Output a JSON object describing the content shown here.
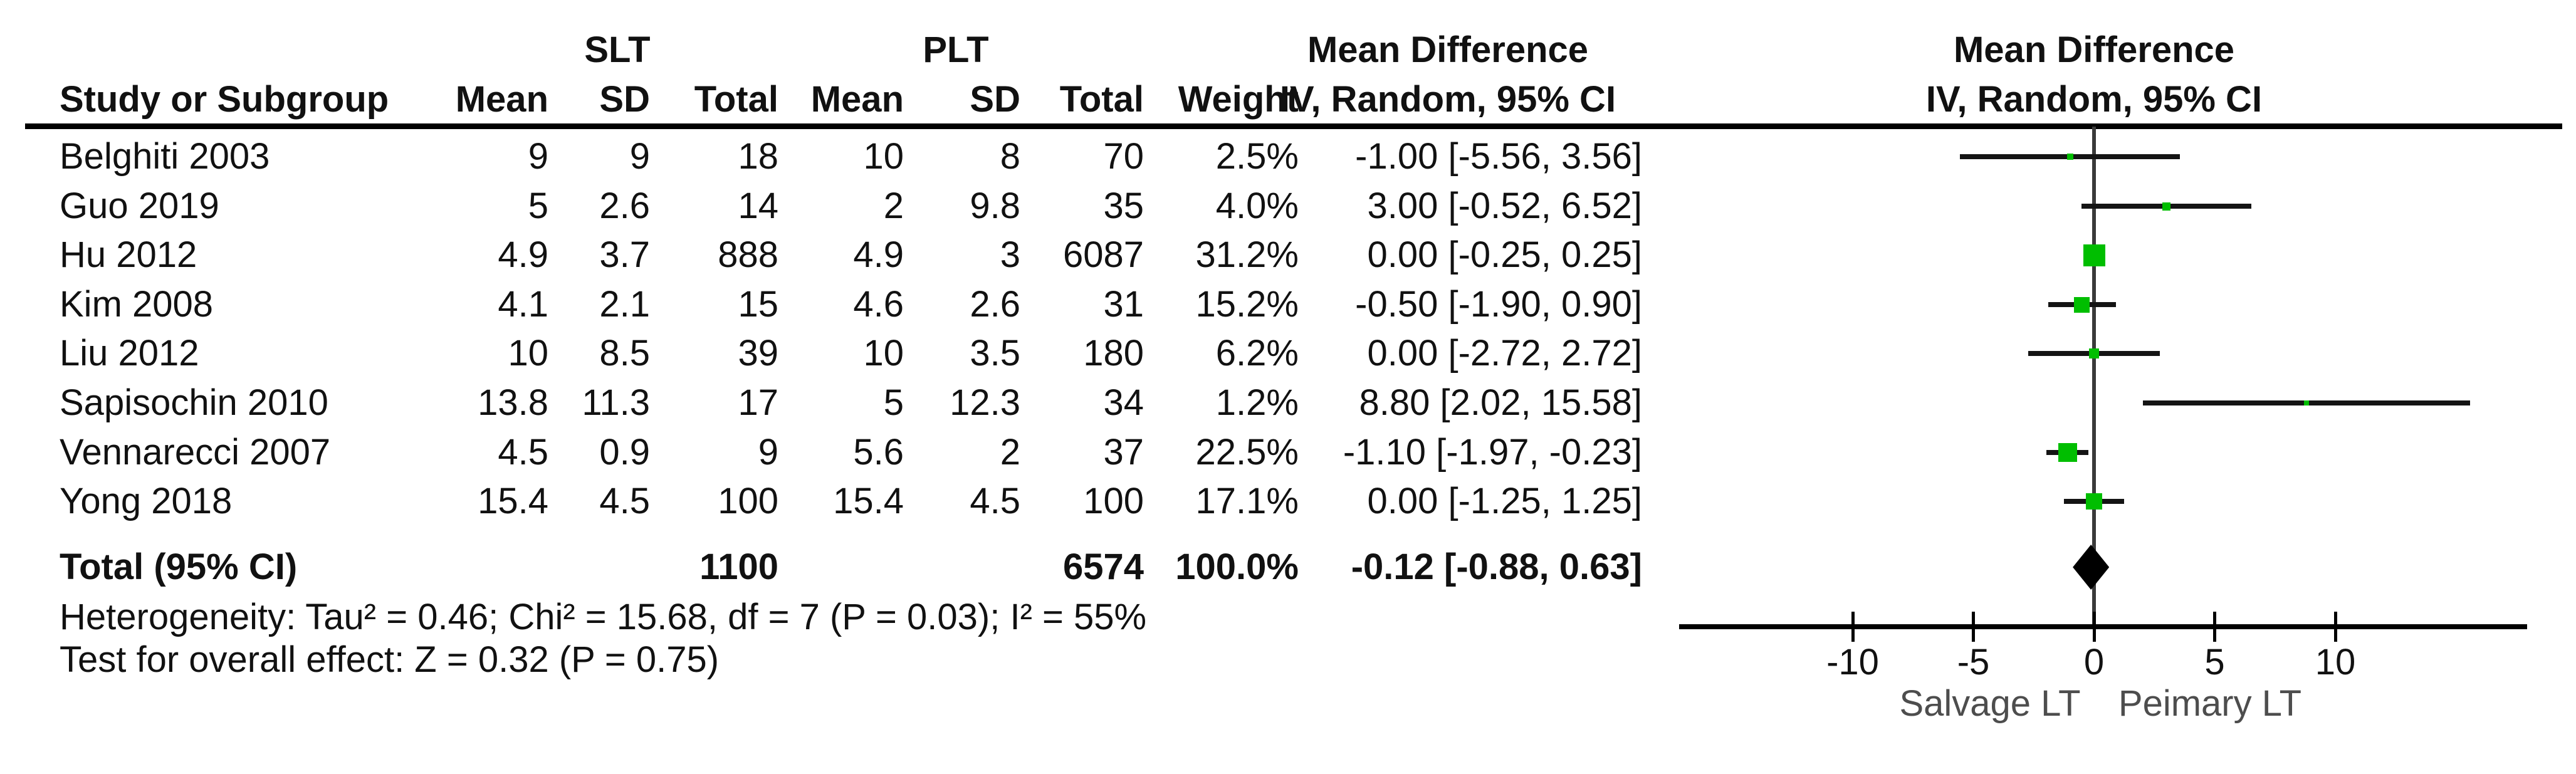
{
  "table": {
    "group_headers": {
      "slt": "SLT",
      "plt": "PLT",
      "md": "Mean Difference"
    },
    "col_headers": {
      "study": "Study or Subgroup",
      "mean": "Mean",
      "sd": "SD",
      "total": "Total",
      "weight": "Weight",
      "ci": "IV, Random, 95% CI"
    },
    "rows": [
      {
        "study": "Belghiti 2003",
        "slt_mean": "9",
        "slt_sd": "9",
        "slt_total": "18",
        "plt_mean": "10",
        "plt_sd": "8",
        "plt_total": "70",
        "weight": "2.5%",
        "ci": "-1.00 [-5.56, 3.56]"
      },
      {
        "study": "Guo 2019",
        "slt_mean": "5",
        "slt_sd": "2.6",
        "slt_total": "14",
        "plt_mean": "2",
        "plt_sd": "9.8",
        "plt_total": "35",
        "weight": "4.0%",
        "ci": "3.00 [-0.52, 6.52]"
      },
      {
        "study": "Hu 2012",
        "slt_mean": "4.9",
        "slt_sd": "3.7",
        "slt_total": "888",
        "plt_mean": "4.9",
        "plt_sd": "3",
        "plt_total": "6087",
        "weight": "31.2%",
        "ci": "0.00 [-0.25, 0.25]"
      },
      {
        "study": "Kim 2008",
        "slt_mean": "4.1",
        "slt_sd": "2.1",
        "slt_total": "15",
        "plt_mean": "4.6",
        "plt_sd": "2.6",
        "plt_total": "31",
        "weight": "15.2%",
        "ci": "-0.50 [-1.90, 0.90]"
      },
      {
        "study": "Liu 2012",
        "slt_mean": "10",
        "slt_sd": "8.5",
        "slt_total": "39",
        "plt_mean": "10",
        "plt_sd": "3.5",
        "plt_total": "180",
        "weight": "6.2%",
        "ci": "0.00 [-2.72, 2.72]"
      },
      {
        "study": "Sapisochin 2010",
        "slt_mean": "13.8",
        "slt_sd": "11.3",
        "slt_total": "17",
        "plt_mean": "5",
        "plt_sd": "12.3",
        "plt_total": "34",
        "weight": "1.2%",
        "ci": "8.80 [2.02, 15.58]"
      },
      {
        "study": "Vennarecci 2007",
        "slt_mean": "4.5",
        "slt_sd": "0.9",
        "slt_total": "9",
        "plt_mean": "5.6",
        "plt_sd": "2",
        "plt_total": "37",
        "weight": "22.5%",
        "ci": "-1.10 [-1.97, -0.23]"
      },
      {
        "study": "Yong 2018",
        "slt_mean": "15.4",
        "slt_sd": "4.5",
        "slt_total": "100",
        "plt_mean": "15.4",
        "plt_sd": "4.5",
        "plt_total": "100",
        "weight": "17.1%",
        "ci": "0.00 [-1.25, 1.25]"
      }
    ],
    "total_row": {
      "label": "Total (95% CI)",
      "slt_total": "1100",
      "plt_total": "6574",
      "weight": "100.0%",
      "ci": "-0.12 [-0.88, 0.63]"
    },
    "heterogeneity": "Heterogeneity: Tau² = 0.46; Chi² = 15.68, df = 7 (P = 0.03); I² = 55%",
    "overall_effect": "Test for overall effect: Z = 0.32 (P = 0.75)"
  },
  "plot": {
    "header_line1": "Mean Difference",
    "header_line2": "IV, Random, 95% CI",
    "axis_label_left": "Salvage LT",
    "axis_label_right": "Peimary LT",
    "marker_color": "#00BE00",
    "ticks": [
      {
        "v": -10,
        "label": "-10"
      },
      {
        "v": -5,
        "label": "-5"
      },
      {
        "v": 0,
        "label": "0"
      },
      {
        "v": 5,
        "label": "5"
      },
      {
        "v": 10,
        "label": "10"
      }
    ]
  },
  "chart_data": {
    "type": "forest",
    "effect_measure": "Mean Difference (IV, Random, 95% CI)",
    "title": "Mean Difference",
    "xlabel_left": "Salvage LT",
    "xlabel_right": "Peimary LT",
    "x_ticks": [
      -10,
      -5,
      0,
      5,
      10
    ],
    "x_range": [
      -17.2,
      17.9
    ],
    "zero_line": 0,
    "studies": [
      {
        "name": "Belghiti 2003",
        "slt": {
          "mean": 9,
          "sd": 9,
          "total": 18
        },
        "plt": {
          "mean": 10,
          "sd": 8,
          "total": 70
        },
        "weight_pct": 2.5,
        "md": -1.0,
        "ci_low": -5.56,
        "ci_high": 3.56
      },
      {
        "name": "Guo 2019",
        "slt": {
          "mean": 5,
          "sd": 2.6,
          "total": 14
        },
        "plt": {
          "mean": 2,
          "sd": 9.8,
          "total": 35
        },
        "weight_pct": 4.0,
        "md": 3.0,
        "ci_low": -0.52,
        "ci_high": 6.52
      },
      {
        "name": "Hu 2012",
        "slt": {
          "mean": 4.9,
          "sd": 3.7,
          "total": 888
        },
        "plt": {
          "mean": 4.9,
          "sd": 3,
          "total": 6087
        },
        "weight_pct": 31.2,
        "md": 0.0,
        "ci_low": -0.25,
        "ci_high": 0.25
      },
      {
        "name": "Kim 2008",
        "slt": {
          "mean": 4.1,
          "sd": 2.1,
          "total": 15
        },
        "plt": {
          "mean": 4.6,
          "sd": 2.6,
          "total": 31
        },
        "weight_pct": 15.2,
        "md": -0.5,
        "ci_low": -1.9,
        "ci_high": 0.9
      },
      {
        "name": "Liu 2012",
        "slt": {
          "mean": 10,
          "sd": 8.5,
          "total": 39
        },
        "plt": {
          "mean": 10,
          "sd": 3.5,
          "total": 180
        },
        "weight_pct": 6.2,
        "md": 0.0,
        "ci_low": -2.72,
        "ci_high": 2.72
      },
      {
        "name": "Sapisochin 2010",
        "slt": {
          "mean": 13.8,
          "sd": 11.3,
          "total": 17
        },
        "plt": {
          "mean": 5,
          "sd": 12.3,
          "total": 34
        },
        "weight_pct": 1.2,
        "md": 8.8,
        "ci_low": 2.02,
        "ci_high": 15.58
      },
      {
        "name": "Vennarecci 2007",
        "slt": {
          "mean": 4.5,
          "sd": 0.9,
          "total": 9
        },
        "plt": {
          "mean": 5.6,
          "sd": 2,
          "total": 37
        },
        "weight_pct": 22.5,
        "md": -1.1,
        "ci_low": -1.97,
        "ci_high": -0.23
      },
      {
        "name": "Yong 2018",
        "slt": {
          "mean": 15.4,
          "sd": 4.5,
          "total": 100
        },
        "plt": {
          "mean": 15.4,
          "sd": 4.5,
          "total": 100
        },
        "weight_pct": 17.1,
        "md": 0.0,
        "ci_low": -1.25,
        "ci_high": 1.25
      }
    ],
    "total": {
      "label": "Total (95% CI)",
      "slt_total": 1100,
      "plt_total": 6574,
      "weight_pct": 100.0,
      "md": -0.12,
      "ci_low": -0.88,
      "ci_high": 0.63
    },
    "heterogeneity": {
      "tau2": 0.46,
      "chi2": 15.68,
      "df": 7,
      "p": 0.03,
      "i2_pct": 55
    },
    "overall_effect": {
      "z": 0.32,
      "p": 0.75
    }
  }
}
